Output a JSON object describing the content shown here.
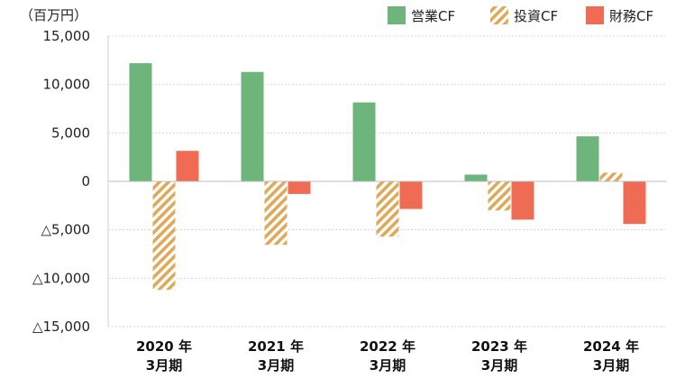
{
  "chart_data": {
    "type": "bar",
    "unit_label": "（百万円）",
    "categories": [
      [
        "2020 年",
        "3月期"
      ],
      [
        "2021 年",
        "3月期"
      ],
      [
        "2022 年",
        "3月期"
      ],
      [
        "2023 年",
        "3月期"
      ],
      [
        "2024 年",
        "3月期"
      ]
    ],
    "series": [
      {
        "name": "営業CF",
        "values": [
          12200,
          11300,
          8150,
          700,
          4650
        ],
        "color": "#6db57a",
        "pattern": "solid"
      },
      {
        "name": "投資CF",
        "values": [
          -11200,
          -6550,
          -5700,
          -3000,
          900
        ],
        "color": "#dfa95a",
        "pattern": "hatch"
      },
      {
        "name": "財務CF",
        "values": [
          3150,
          -1300,
          -2850,
          -3950,
          -4400
        ],
        "color": "#ef6b54",
        "pattern": "solid"
      }
    ],
    "ylim": [
      -15000,
      15000
    ],
    "yticks": [
      {
        "value": 15000,
        "label": "15,000"
      },
      {
        "value": 10000,
        "label": "10,000"
      },
      {
        "value": 5000,
        "label": "5,000"
      },
      {
        "value": 0,
        "label": "0"
      },
      {
        "value": -5000,
        "label": "△5,000"
      },
      {
        "value": -10000,
        "label": "△10,000"
      },
      {
        "value": -15000,
        "label": "△15,000"
      }
    ],
    "grid": true,
    "legend": "top-right"
  }
}
